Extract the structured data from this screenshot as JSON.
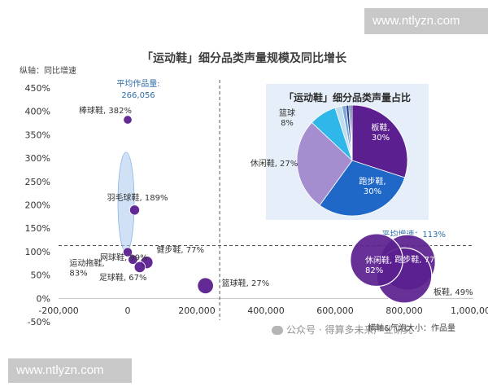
{
  "watermarks": {
    "top": "www.ntlyzn.com",
    "bottom": "www.ntlyzn.com"
  },
  "credit": "公众号 · 得算多未来产业研究",
  "colors": {
    "title": "#3d3d3d",
    "bubble": "#5b1f8f",
    "avg_label": "#2f6ea8",
    "pie_panel": "#e6eff9"
  },
  "chart_data": [
    {
      "type": "scatter",
      "title": "「运动鞋」细分品类声量规模及同比增长",
      "xlabel": "横轴&气泡大小：作品量",
      "ylabel": "纵轴：同比增速",
      "xlim": [
        -200000,
        1000000
      ],
      "ylim": [
        -50,
        450
      ],
      "x_ticks": [
        "-200,000",
        "0",
        "200,000",
        "400,000",
        "600,000",
        "800,000",
        "1,000,000"
      ],
      "y_ticks": [
        "-50%",
        "0%",
        "50%",
        "100%",
        "150%",
        "200%",
        "250%",
        "300%",
        "350%",
        "400%",
        "450%"
      ],
      "avg_x_label": "平均作品量:",
      "avg_x_value": "266,056",
      "avg_x": 266056,
      "avg_y_label": "平均增速：113%",
      "avg_y": 113,
      "points": [
        {
          "name": "棒球鞋",
          "label": "棒球鞋, 382%",
          "x": 0,
          "y": 382,
          "size": 1500
        },
        {
          "name": "羽毛球鞋",
          "label": "羽毛球鞋, 189%",
          "x": 20000,
          "y": 189,
          "size": 4000
        },
        {
          "name": "网球鞋",
          "label": "网球鞋, 99%",
          "x": 0,
          "y": 99,
          "size": 2500
        },
        {
          "name": "运动拖鞋",
          "label": "运动拖鞋,\n83%",
          "x": 15000,
          "y": 83,
          "size": 3000
        },
        {
          "name": "健步鞋",
          "label": "健步鞋, 77%",
          "x": 55000,
          "y": 77,
          "size": 12000
        },
        {
          "name": "足球鞋",
          "label": "足球鞋, 67%",
          "x": 35000,
          "y": 67,
          "size": 7000
        },
        {
          "name": "篮球鞋",
          "label": "篮球鞋, 27%",
          "x": 225000,
          "y": 27,
          "size": 30000
        },
        {
          "name": "休闲鞋",
          "label": "休闲鞋,\n82%",
          "x": 720000,
          "y": 82,
          "size": 720000
        },
        {
          "name": "跑步鞋",
          "label": "跑步鞋, 77%",
          "x": 810000,
          "y": 77,
          "size": 810000
        },
        {
          "name": "板鞋",
          "label": "板鞋, 49%",
          "x": 800000,
          "y": 49,
          "size": 800000
        }
      ]
    },
    {
      "type": "pie",
      "title": "「运动鞋」细分品类声量占比",
      "slices": [
        {
          "name": "板鞋",
          "label": "板鞋,\n30%",
          "value": 30,
          "color": "#5b1f8f"
        },
        {
          "name": "跑步鞋",
          "label": "跑步鞋,\n30%",
          "value": 30,
          "color": "#1f68c8"
        },
        {
          "name": "休闲鞋",
          "label": "休闲鞋, 27%",
          "value": 27,
          "color": "#a58ed0"
        },
        {
          "name": "篮球鞋",
          "label": "篮球\n8%",
          "value": 8,
          "color": "#2eb7e8"
        },
        {
          "name": "other-1",
          "label": "",
          "value": 2,
          "color": "#c0dcef"
        },
        {
          "name": "other-2",
          "label": "",
          "value": 1.2,
          "color": "#7aa6d8"
        },
        {
          "name": "other-3",
          "label": "",
          "value": 0.8,
          "color": "#2a3f8f"
        },
        {
          "name": "other-4",
          "label": "",
          "value": 0.6,
          "color": "#5c7cb8"
        },
        {
          "name": "other-5",
          "label": "",
          "value": 0.4,
          "color": "#1a1a6e"
        }
      ]
    }
  ]
}
